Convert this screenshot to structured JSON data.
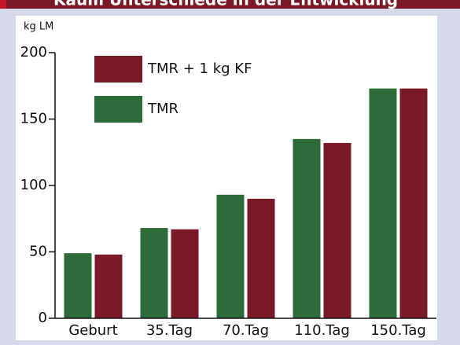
{
  "chart_data": {
    "type": "bar",
    "title": "Kaum Unterschiede in der Entwicklung",
    "y_label": "kg LM",
    "categories": [
      "Geburt",
      "35.Tag",
      "70.Tag",
      "110.Tag",
      "150.Tag"
    ],
    "series": [
      {
        "name": "TMR",
        "color": "#2e6b3b",
        "values": [
          49,
          68,
          93,
          135,
          173
        ]
      },
      {
        "name": "TMR + 1 kg KF",
        "color": "#7a1a27",
        "values": [
          48,
          67,
          90,
          132,
          173
        ]
      }
    ],
    "ylim": [
      0,
      200
    ],
    "yticks": [
      0,
      50,
      100,
      150,
      200
    ]
  }
}
